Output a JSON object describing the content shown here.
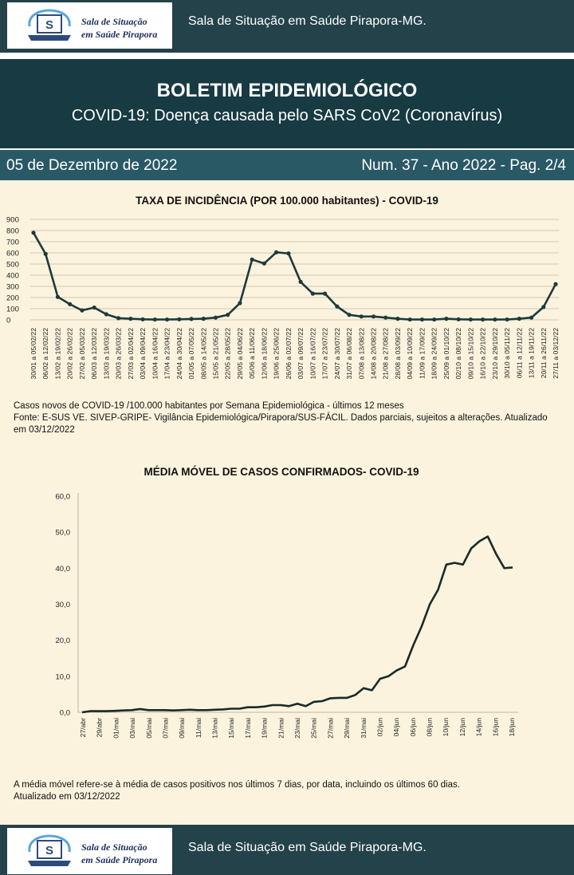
{
  "header": {
    "logo_line1": "Sala de Situação",
    "logo_line2": "em Saúde Pirapora",
    "site_title": "Sala de Situação em Saúde Pirapora-MG."
  },
  "bulletin": {
    "title": "BOLETIM EPIDEMIOLÓGICO",
    "subtitle": "COVID-19: Doença  causada pelo SARS CoV2 (Coronavírus)",
    "date": "05 de Dezembro de 2022",
    "number": "Num. 37 -  Ano 2022 - Pag. 2/4"
  },
  "chart_data": [
    {
      "type": "line",
      "title": "TAXA DE INCIDÊNCIA (POR 100.000 habitantes) - COVID-19",
      "xlabel": "",
      "ylabel": "",
      "ylim": [
        0,
        900
      ],
      "yticks": [
        "900",
        "800",
        "700",
        "600",
        "500",
        "400",
        "300",
        "200",
        "100",
        "0"
      ],
      "grid": true,
      "categories": [
        "30/01 a 05/02/22",
        "06/02 a 12/02/22",
        "13/02 a 19/02/22",
        "20/02 a 26/02/22",
        "27/02 a 05/03/22",
        "06/03 a 12/03/22",
        "13/03 a 19/03/22",
        "20/03 a 26/03/22",
        "27/03 a 02/04/22",
        "03/04 a 09/04/22",
        "10/04 a 16/04/22",
        "17/04 a 23/04/22",
        "24/04 a 30/04/22",
        "01/05 a 07/05/22",
        "08/05 a 14/05/22",
        "15/05 a 21/05/22",
        "22/05 a 28/05/22",
        "29/05 a 04/06/22",
        "05/06 a 11/06/22",
        "12/06 a 18/06/22",
        "19/06 a 25/06/22",
        "26/06 a 02/07/22",
        "03/07 a 09/07/22",
        "10/07 a 16/07/22",
        "17/07 a 23/07/22",
        "24/07 a 30/07/22",
        "31/07 a 06/08/22",
        "07/08 a 13/08/22",
        "14/08 a 20/08/22",
        "21/08 a 27/08/22",
        "28/08 a 03/09/22",
        "04/09 a 10/09/22",
        "11/09 a 17/09/22",
        "18/09 a 24/09/22",
        "25/09 a 01/10/22",
        "02/10 a 08/10/22",
        "09/10 a 15/10/22",
        "16/10 a 22/10/22",
        "23/10 a 29/10/22",
        "30/10 a 05/11/22",
        "06/11 a 12/11/22",
        "13/11 a 19/11/22",
        "20/11 a 26/11/22",
        "27/11 a 03/12/22"
      ],
      "values": [
        780,
        590,
        205,
        140,
        85,
        110,
        50,
        15,
        10,
        5,
        3,
        3,
        5,
        8,
        10,
        20,
        45,
        150,
        540,
        505,
        605,
        595,
        340,
        235,
        235,
        120,
        45,
        30,
        30,
        20,
        10,
        3,
        3,
        3,
        10,
        5,
        3,
        3,
        3,
        3,
        10,
        20,
        115,
        320
      ]
    },
    {
      "type": "line",
      "title": "MÉDIA MÓVEL DE CASOS CONFIRMADOS-  COVID-19",
      "xlabel": "",
      "ylabel": "",
      "ylim": [
        0,
        60
      ],
      "yticks": [
        "60,0",
        "50,0",
        "40,0",
        "30,0",
        "20,0",
        "10,0",
        "0,0"
      ],
      "grid": false,
      "tick_labels": [
        "27/abr",
        "29/abr",
        "01/mai",
        "03/mai",
        "05/mai",
        "07/mai",
        "09/mai",
        "11/mai",
        "13/mai",
        "15/mai",
        "17/mai",
        "19/mai",
        "21/mai",
        "23/mai",
        "25/mai",
        "27/mai",
        "29/mai",
        "31/mai",
        "02/jun",
        "04/jun",
        "06/jun",
        "08/jun",
        "10/jun",
        "12/jun",
        "14/jun",
        "16/jun",
        "18/jun"
      ],
      "values": [
        0.0,
        0.3,
        0.3,
        0.3,
        0.4,
        0.5,
        0.6,
        0.9,
        0.6,
        0.6,
        0.6,
        0.5,
        0.6,
        0.7,
        0.6,
        0.6,
        0.7,
        0.8,
        1.0,
        1.0,
        1.4,
        1.4,
        1.6,
        2.0,
        2.0,
        1.7,
        2.4,
        1.7,
        2.9,
        3.1,
        3.9,
        4.0,
        4.0,
        4.8,
        6.7,
        6.1,
        9.3,
        10.0,
        11.6,
        12.7,
        18.6,
        23.8,
        30.0,
        34.0,
        41.0,
        41.5,
        41.0,
        45.5,
        47.5,
        48.8,
        44.0,
        40.0,
        40.2
      ]
    }
  ],
  "notes": {
    "incidence_line1": "Casos novos de COVID-19 /100.000 habitantes por Semana Epidemiológica -  últimos 12 meses",
    "incidence_line2": "Fonte: E-SUS VE. SIVEP-GRIPE- Vigilância Epidemiológica/Pirapora/SUS-FÁCIL. Dados parciais, sujeitos a alterações. Atualizado",
    "incidence_line3": "em  03/12/2022",
    "moving_line1": "A média móvel refere-se à média de casos positivos nos últimos 7 dias, por data, incluindo os últimos 60 dias.",
    "moving_line2": "Atualizado em 03/12/2022"
  },
  "colors": {
    "dark_teal": "#173a43",
    "date_bar": "#2a5966",
    "paper": "#fbf3dd",
    "line": "#1f3a3c"
  }
}
